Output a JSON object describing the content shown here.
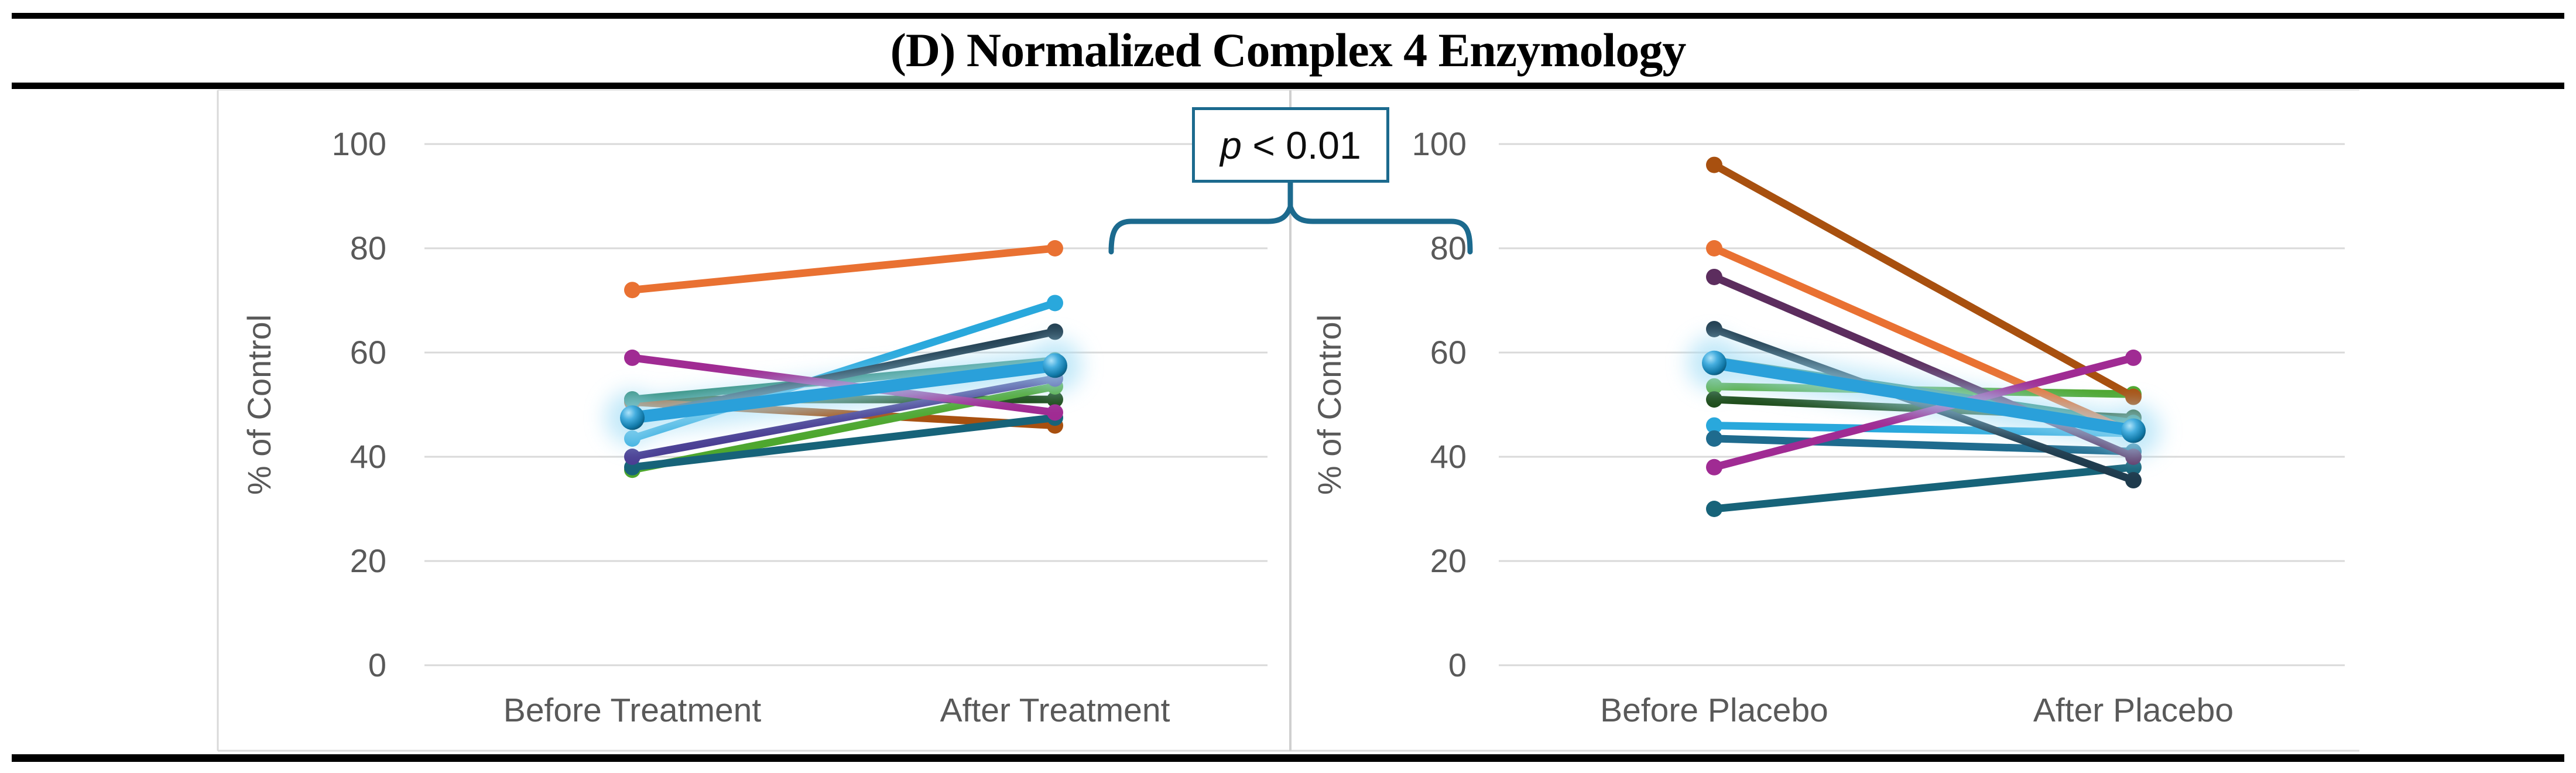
{
  "title": "(D) Normalized Complex 4 Enzymology",
  "annotation": {
    "p_symbol": "p",
    "p_rest": " < 0.01"
  },
  "colors": {
    "accent_teal": "#1C6A8E",
    "gridline": "#D9D9D9",
    "panel_border": "#D9D9D9",
    "divider": "#CFCFCF",
    "axis_text": "#595959",
    "glow_halo": "#A7DFF6",
    "mean_line": "#2AA0DA"
  },
  "chart_data": [
    {
      "type": "line",
      "panel": "treatment",
      "ylabel": "% of Control",
      "categories": [
        "Before Treatment",
        "After Treatment"
      ],
      "ylim": [
        0,
        100
      ],
      "yticks": [
        0,
        20,
        40,
        60,
        80,
        100
      ],
      "grid": true,
      "legend": "none",
      "series": [
        {
          "name": "forest-green",
          "color": "#1C4A16",
          "values": [
            51,
            51
          ]
        },
        {
          "name": "brown",
          "color": "#A8500F",
          "values": [
            50.5,
            46
          ]
        },
        {
          "name": "sea-green",
          "color": "#1F8169",
          "values": [
            51,
            58.5
          ]
        },
        {
          "name": "bright-green",
          "color": "#4EA72E",
          "values": [
            37.5,
            53.5
          ]
        },
        {
          "name": "dark-teal",
          "color": "#176379",
          "values": [
            38,
            47.5
          ]
        },
        {
          "name": "indigo",
          "color": "#4A3D92",
          "values": [
            40,
            55
          ]
        },
        {
          "name": "light-blue",
          "color": "#29A8DC",
          "values": [
            43.5,
            69.5
          ]
        },
        {
          "name": "navy",
          "color": "#1F3B4D",
          "values": [
            47.5,
            64
          ]
        },
        {
          "name": "magenta",
          "color": "#A02B93",
          "values": [
            59,
            48.5
          ]
        },
        {
          "name": "orange",
          "color": "#E97132",
          "values": [
            72,
            80
          ]
        },
        {
          "name": "mean-highlight",
          "color": "#2AA0DA",
          "values": [
            47.5,
            57.5
          ],
          "highlight": true
        }
      ]
    },
    {
      "type": "line",
      "panel": "placebo",
      "ylabel": "% of Control",
      "categories": [
        "Before Placebo",
        "After Placebo"
      ],
      "ylim": [
        0,
        100
      ],
      "yticks": [
        0,
        20,
        40,
        60,
        80,
        100
      ],
      "grid": true,
      "legend": "none",
      "series": [
        {
          "name": "bright-green",
          "color": "#4EA72E",
          "values": [
            53.5,
            52
          ]
        },
        {
          "name": "forest-green",
          "color": "#1C4A16",
          "values": [
            51,
            47.5
          ]
        },
        {
          "name": "light-blue",
          "color": "#29A8DC",
          "values": [
            46,
            44.5
          ]
        },
        {
          "name": "steel-blue",
          "color": "#1F6B8E",
          "values": [
            43.5,
            41
          ]
        },
        {
          "name": "dark-teal",
          "color": "#176379",
          "values": [
            30,
            38
          ]
        },
        {
          "name": "sea-green",
          "color": "#1F8169",
          "values": [
            58.5,
            46.5
          ]
        },
        {
          "name": "plum",
          "color": "#5C2D5E",
          "values": [
            74.5,
            40
          ]
        },
        {
          "name": "navy",
          "color": "#1F3B4D",
          "values": [
            64.5,
            35.5
          ]
        },
        {
          "name": "orange",
          "color": "#E97132",
          "values": [
            80,
            44.5
          ]
        },
        {
          "name": "rust",
          "color": "#A8500F",
          "values": [
            96,
            51.5
          ]
        },
        {
          "name": "magenta",
          "color": "#A02B93",
          "values": [
            38,
            59
          ]
        },
        {
          "name": "mean-highlight",
          "color": "#2AA0DA",
          "values": [
            58,
            45
          ],
          "highlight": true
        }
      ]
    }
  ]
}
